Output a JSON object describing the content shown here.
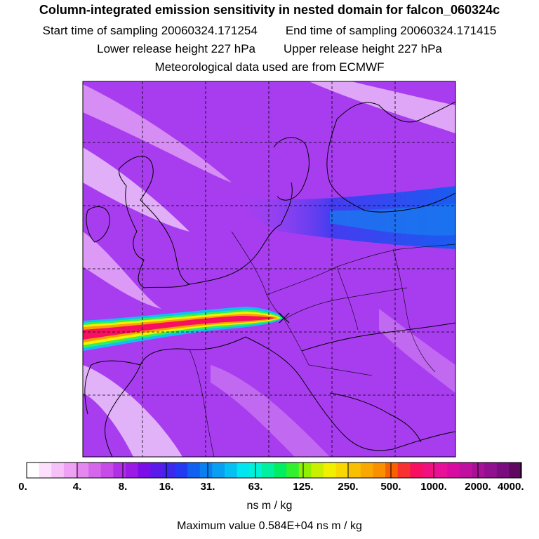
{
  "header": {
    "title": "Column-integrated emission sensitivity in nested domain for falcon_060324c",
    "start_label": "Start time of sampling 20060324.171254",
    "end_label": "End time of sampling 20060324.171415",
    "lower_label": "Lower release height  227 hPa",
    "upper_label": "Upper release height  227 hPa",
    "met_label": "Meteorological data used are from ECMWF"
  },
  "colorbar": {
    "tick_labels": [
      "0.",
      "4.",
      "8.",
      "16.",
      "31.",
      "63.",
      "125.",
      "250.",
      "500.",
      "1000.",
      "2000.",
      "4000."
    ],
    "colors": [
      "#ffffff",
      "#fde0fd",
      "#f6c0f8",
      "#eea2f3",
      "#e488ef",
      "#d467ec",
      "#c64be9",
      "#b030e6",
      "#9b1ae6",
      "#7c0ee8",
      "#5a1aec",
      "#3b28ee",
      "#2339f2",
      "#1060f2",
      "#0a7ff0",
      "#0aa0f2",
      "#05c0f2",
      "#00e6f0",
      "#00f0d8",
      "#00f0a0",
      "#00ee60",
      "#30f030",
      "#90f000",
      "#c8f000",
      "#f0f000",
      "#f8d800",
      "#f8c000",
      "#f8a800",
      "#f89000",
      "#f86000",
      "#f83030",
      "#f81060",
      "#f01080",
      "#e81098",
      "#d80aa0",
      "#c010a0",
      "#a81098",
      "#901090",
      "#7a0c80",
      "#5e0860"
    ],
    "units": "ns m / kg",
    "max_value_text": "Maximum value  0.584E+04 ns m / kg"
  },
  "map": {
    "background_color": "#a83df0",
    "plume_colors": [
      "#10c0f0",
      "#30f060",
      "#f8f000",
      "#f8a000",
      "#f81060"
    ],
    "jet_color": "#1a4cf0"
  }
}
